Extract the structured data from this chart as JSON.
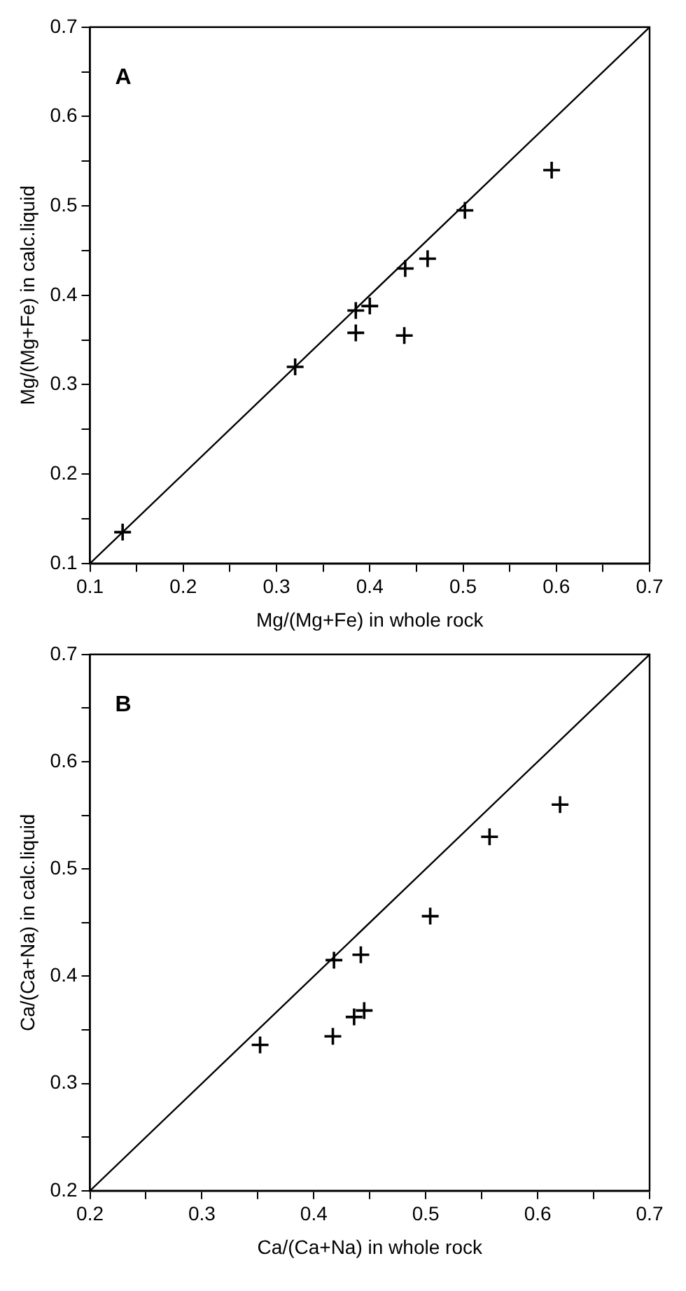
{
  "chart_data": [
    {
      "type": "scatter",
      "xlabel": "Mg/(Mg+Fe) in whole rock",
      "ylabel": "Mg/(Mg+Fe) in calc.liquid",
      "annotations": [
        "A"
      ],
      "marker": "cross",
      "grid": false,
      "legend": false,
      "xlim": [
        0.1,
        0.7
      ],
      "ylim": [
        0.1,
        0.7
      ],
      "xticks": [
        0.1,
        {
          "value": 0.15,
          "label": null
        },
        0.2,
        {
          "value": 0.25,
          "label": null
        },
        0.3,
        {
          "value": 0.35,
          "label": null
        },
        0.4,
        {
          "value": 0.45,
          "label": null
        },
        0.5,
        {
          "value": 0.55,
          "label": null
        },
        0.6,
        {
          "value": 0.65,
          "label": null
        },
        0.7
      ],
      "yticks": [
        0.1,
        {
          "value": 0.15,
          "label": null
        },
        0.2,
        {
          "value": 0.25,
          "label": null
        },
        0.3,
        {
          "value": 0.35,
          "label": null
        },
        0.4,
        {
          "value": 0.45,
          "label": null
        },
        0.5,
        {
          "value": 0.55,
          "label": null
        },
        0.6,
        {
          "value": 0.65,
          "label": null
        },
        0.7
      ],
      "series": [
        {
          "color": "#000000",
          "x": [
            0.135,
            0.32,
            0.385,
            0.385,
            0.4,
            0.438,
            0.437,
            0.462,
            0.502,
            0.595
          ],
          "values": [
            0.135,
            0.32,
            0.383,
            0.358,
            0.388,
            0.43,
            0.355,
            0.441,
            0.495,
            0.54
          ]
        },
        {
          "type": "line",
          "color": "#000000",
          "marker": "none",
          "x": [
            0.1,
            0.7
          ],
          "values": [
            0.1,
            0.7
          ]
        }
      ]
    },
    {
      "type": "scatter",
      "xlabel": "Ca/(Ca+Na) in whole rock",
      "ylabel": "Ca/(Ca+Na) in calc.liquid",
      "annotations": [
        "B"
      ],
      "marker": "cross",
      "grid": false,
      "legend": false,
      "xlim": [
        0.2,
        0.7
      ],
      "ylim": [
        0.2,
        0.7
      ],
      "xticks": [
        0.2,
        {
          "value": 0.25,
          "label": null
        },
        0.3,
        {
          "value": 0.35,
          "label": null
        },
        0.4,
        {
          "value": 0.45,
          "label": null
        },
        0.5,
        {
          "value": 0.55,
          "label": null
        },
        0.6,
        {
          "value": 0.65,
          "label": null
        },
        0.7
      ],
      "yticks": [
        0.2,
        {
          "value": 0.25,
          "label": null
        },
        0.3,
        {
          "value": 0.35,
          "label": null
        },
        0.4,
        {
          "value": 0.45,
          "label": null
        },
        0.5,
        {
          "value": 0.55,
          "label": null
        },
        0.6,
        {
          "value": 0.65,
          "label": null
        },
        0.7
      ],
      "series": [
        {
          "color": "#000000",
          "x": [
            0.352,
            0.418,
            0.442,
            0.417,
            0.436,
            0.445,
            0.504,
            0.557,
            0.62
          ],
          "values": [
            0.336,
            0.415,
            0.42,
            0.344,
            0.362,
            0.368,
            0.456,
            0.53,
            0.56
          ]
        },
        {
          "type": "line",
          "color": "#000000",
          "marker": "none",
          "x": [
            0.2,
            0.7
          ],
          "values": [
            0.2,
            0.7
          ]
        }
      ]
    }
  ]
}
